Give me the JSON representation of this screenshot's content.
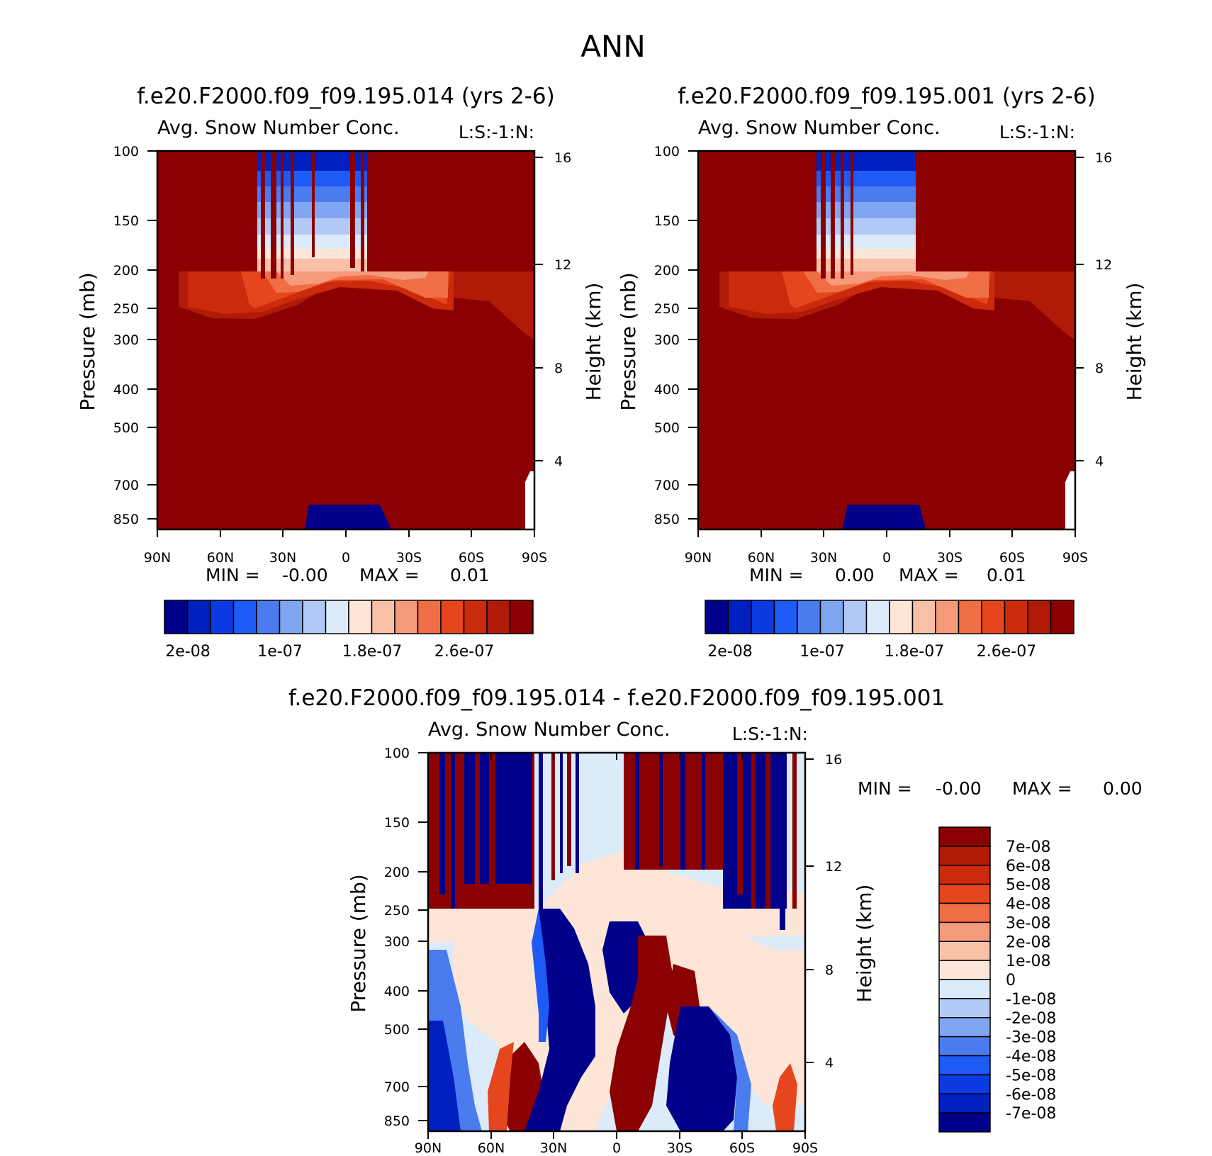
{
  "main_title": "ANN",
  "chart_data": [
    {
      "type": "heatmap",
      "title": "f.e20.F2000.f09_f09.195.014 (yrs 2-6)",
      "subtitle": "Avg. Snow Number Conc.",
      "level_note": "L:S:-1:N:",
      "xlabel": "",
      "ylabel": "Pressure (mb)",
      "ylabel_right": "Height (km)",
      "x_ticks": [
        "90N",
        "60N",
        "30N",
        "0",
        "30S",
        "60S",
        "90S"
      ],
      "y_ticks": [
        "100",
        "150",
        "200",
        "250",
        "300",
        "400",
        "500",
        "700",
        "850"
      ],
      "y2_ticks": [
        "16",
        "12",
        "8",
        "4"
      ],
      "ylim": [
        100,
        850
      ],
      "y_scale": "log",
      "stats": {
        "min_label": "MIN =",
        "min_value": "-0.00",
        "max_label": "MAX =",
        "max_value": "0.01"
      },
      "colorbar": {
        "orientation": "horizontal",
        "tick_labels": [
          "2e-08",
          "1e-07",
          "1.8e-07",
          "2.6e-07"
        ],
        "colors": [
          "#00008b",
          "#0020c0",
          "#0a3ae0",
          "#1e5af5",
          "#4a7cf0",
          "#80a6f2",
          "#b3c9f5",
          "#dcebfa",
          "#fde6d8",
          "#f8c0a6",
          "#f59a7a",
          "#f06e46",
          "#e6461e",
          "#cc2a0c",
          "#b01b08",
          "#8b0000"
        ]
      }
    },
    {
      "type": "heatmap",
      "title": "f.e20.F2000.f09_f09.195.001 (yrs 2-6)",
      "subtitle": "Avg. Snow Number Conc.",
      "level_note": "L:S:-1:N:",
      "xlabel": "",
      "ylabel": "Pressure (mb)",
      "ylabel_right": "Height (km)",
      "x_ticks": [
        "90N",
        "60N",
        "30N",
        "0",
        "30S",
        "60S",
        "90S"
      ],
      "y_ticks": [
        "100",
        "150",
        "200",
        "250",
        "300",
        "400",
        "500",
        "700",
        "850"
      ],
      "y2_ticks": [
        "16",
        "12",
        "8",
        "4"
      ],
      "ylim": [
        100,
        850
      ],
      "y_scale": "log",
      "stats": {
        "min_label": "MIN =",
        "min_value": "0.00",
        "max_label": "MAX =",
        "max_value": "0.01"
      },
      "colorbar": {
        "orientation": "horizontal",
        "tick_labels": [
          "2e-08",
          "1e-07",
          "1.8e-07",
          "2.6e-07"
        ],
        "colors": [
          "#00008b",
          "#0020c0",
          "#0a3ae0",
          "#1e5af5",
          "#4a7cf0",
          "#80a6f2",
          "#b3c9f5",
          "#dcebfa",
          "#fde6d8",
          "#f8c0a6",
          "#f59a7a",
          "#f06e46",
          "#e6461e",
          "#cc2a0c",
          "#b01b08",
          "#8b0000"
        ]
      }
    },
    {
      "type": "heatmap",
      "title": "f.e20.F2000.f09_f09.195.014 - f.e20.F2000.f09_f09.195.001",
      "subtitle": "Avg. Snow Number Conc.",
      "level_note": "L:S:-1:N:",
      "xlabel": "",
      "ylabel": "Pressure (mb)",
      "ylabel_right": "Height (km)",
      "x_ticks": [
        "90N",
        "60N",
        "30N",
        "0",
        "30S",
        "60S",
        "90S"
      ],
      "y_ticks": [
        "100",
        "150",
        "200",
        "250",
        "300",
        "400",
        "500",
        "700",
        "850"
      ],
      "y2_ticks": [
        "16",
        "12",
        "8",
        "4"
      ],
      "ylim": [
        100,
        850
      ],
      "y_scale": "log",
      "stats": {
        "min_label": "MIN =",
        "min_value": "-0.00",
        "max_label": "MAX =",
        "max_value": "0.00"
      },
      "colorbar": {
        "orientation": "vertical",
        "tick_labels": [
          "7e-08",
          "6e-08",
          "5e-08",
          "4e-08",
          "3e-08",
          "2e-08",
          "1e-08",
          "0",
          "-1e-08",
          "-2e-08",
          "-3e-08",
          "-4e-08",
          "-5e-08",
          "-6e-08",
          "-7e-08"
        ],
        "colors": [
          "#8b0000",
          "#b01b08",
          "#cc2a0c",
          "#e6461e",
          "#f06e46",
          "#f59a7a",
          "#f8c0a6",
          "#fde6d8",
          "#dcebfa",
          "#b3c9f5",
          "#80a6f2",
          "#4a7cf0",
          "#1e5af5",
          "#0a3ae0",
          "#0020c0",
          "#00008b"
        ]
      }
    }
  ],
  "colors": {
    "dark_red": "#8b0000",
    "dark_blue": "#00008b",
    "neutral_light_red": "#fde6d8",
    "neutral_light_blue": "#dcebfa"
  }
}
